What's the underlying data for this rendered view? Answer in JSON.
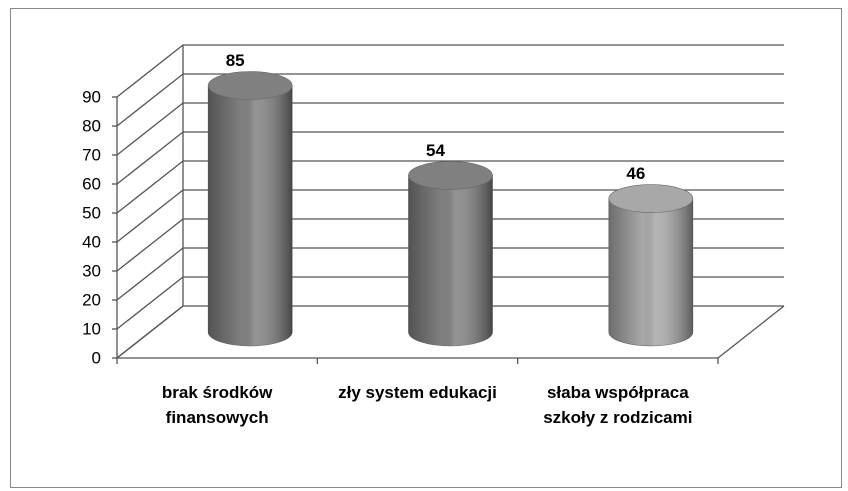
{
  "chart_data": {
    "type": "bar3d",
    "categories": [
      "brak środków finansowych",
      "zły system edukacji",
      "słaba współpraca szkoły z rodzicami"
    ],
    "values": [
      85,
      54,
      46
    ],
    "colors": [
      "#808080",
      "#808080",
      "#a8a8a8"
    ],
    "ylim": [
      0,
      90
    ],
    "yticks": [
      0,
      10,
      20,
      30,
      40,
      50,
      60,
      70,
      80,
      90
    ],
    "grid": true
  }
}
